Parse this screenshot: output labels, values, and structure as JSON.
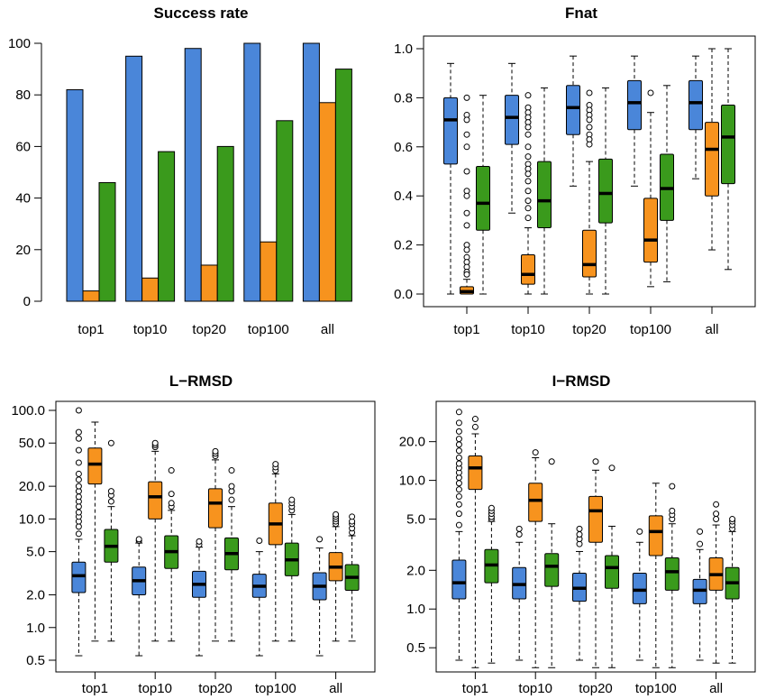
{
  "colors": {
    "blue": "#4A86D9",
    "orange": "#F7931E",
    "green": "#3A9A1C"
  },
  "chart_data": [
    {
      "type": "bar",
      "title": "Success rate",
      "categories": [
        "top1",
        "top10",
        "top20",
        "top100",
        "all"
      ],
      "ylim": [
        0,
        100
      ],
      "yticks": [
        0,
        20,
        40,
        60,
        80,
        100
      ],
      "ytick_labels": [
        "0",
        "20",
        "40",
        "60",
        "80",
        "100"
      ],
      "series": [
        {
          "color": "blue",
          "values": [
            82,
            95,
            98,
            100,
            100
          ]
        },
        {
          "color": "orange",
          "values": [
            4,
            9,
            14,
            23,
            77
          ]
        },
        {
          "color": "green",
          "values": [
            46,
            58,
            60,
            70,
            90
          ]
        }
      ]
    },
    {
      "type": "box",
      "title": "Fnat",
      "scale": "linear",
      "categories": [
        "top1",
        "top10",
        "top20",
        "top100",
        "all"
      ],
      "ylim": [
        0,
        1
      ],
      "yticks": [
        0,
        0.2,
        0.4,
        0.6,
        0.8,
        1.0
      ],
      "ytick_labels": [
        "0.0",
        "0.2",
        "0.4",
        "0.6",
        "0.8",
        "1.0"
      ],
      "groups": [
        [
          {
            "color": "blue",
            "min": 0.0,
            "q1": 0.53,
            "median": 0.71,
            "q3": 0.8,
            "max": 0.94,
            "outliers": []
          },
          {
            "color": "orange",
            "min": 0.0,
            "q1": 0.0,
            "median": 0.01,
            "q3": 0.03,
            "max": 0.06,
            "outliers": [
              0.8,
              0.73,
              0.71,
              0.65,
              0.6,
              0.5,
              0.42,
              0.4,
              0.33,
              0.28,
              0.2,
              0.18,
              0.15,
              0.13,
              0.11,
              0.09,
              0.08
            ]
          },
          {
            "color": "green",
            "min": 0.0,
            "q1": 0.26,
            "median": 0.37,
            "q3": 0.52,
            "max": 0.81,
            "outliers": []
          }
        ],
        [
          {
            "color": "blue",
            "min": 0.33,
            "q1": 0.61,
            "median": 0.72,
            "q3": 0.81,
            "max": 0.94,
            "outliers": []
          },
          {
            "color": "orange",
            "min": 0.0,
            "q1": 0.04,
            "median": 0.08,
            "q3": 0.16,
            "max": 0.27,
            "outliers": [
              0.81,
              0.76,
              0.74,
              0.72,
              0.7,
              0.68,
              0.65,
              0.6,
              0.56,
              0.53,
              0.51,
              0.49,
              0.46,
              0.42,
              0.38,
              0.35,
              0.31
            ]
          },
          {
            "color": "green",
            "min": 0.0,
            "q1": 0.27,
            "median": 0.38,
            "q3": 0.54,
            "max": 0.84,
            "outliers": []
          }
        ],
        [
          {
            "color": "blue",
            "min": 0.44,
            "q1": 0.65,
            "median": 0.76,
            "q3": 0.85,
            "max": 0.97,
            "outliers": []
          },
          {
            "color": "orange",
            "min": 0.0,
            "q1": 0.07,
            "median": 0.12,
            "q3": 0.26,
            "max": 0.54,
            "outliers": [
              0.82,
              0.77,
              0.75,
              0.73,
              0.71,
              0.68,
              0.65,
              0.63,
              0.61
            ]
          },
          {
            "color": "green",
            "min": 0.0,
            "q1": 0.29,
            "median": 0.41,
            "q3": 0.55,
            "max": 0.84,
            "outliers": []
          }
        ],
        [
          {
            "color": "blue",
            "min": 0.44,
            "q1": 0.67,
            "median": 0.78,
            "q3": 0.87,
            "max": 0.97,
            "outliers": []
          },
          {
            "color": "orange",
            "min": 0.03,
            "q1": 0.13,
            "median": 0.22,
            "q3": 0.39,
            "max": 0.74,
            "outliers": [
              0.82
            ]
          },
          {
            "color": "green",
            "min": 0.05,
            "q1": 0.3,
            "median": 0.43,
            "q3": 0.57,
            "max": 0.85,
            "outliers": []
          }
        ],
        [
          {
            "color": "blue",
            "min": 0.47,
            "q1": 0.67,
            "median": 0.78,
            "q3": 0.87,
            "max": 0.97,
            "outliers": []
          },
          {
            "color": "orange",
            "min": 0.18,
            "q1": 0.4,
            "median": 0.59,
            "q3": 0.7,
            "max": 1.0,
            "outliers": []
          },
          {
            "color": "green",
            "min": 0.1,
            "q1": 0.45,
            "median": 0.64,
            "q3": 0.77,
            "max": 1.0,
            "outliers": []
          }
        ]
      ]
    },
    {
      "type": "box",
      "title": "L−RMSD",
      "scale": "log",
      "categories": [
        "top1",
        "top10",
        "top20",
        "top100",
        "all"
      ],
      "ylim": [
        0.5,
        100
      ],
      "yticks": [
        0.5,
        1,
        2,
        5,
        10,
        20,
        50,
        100
      ],
      "ytick_labels": [
        "0.5",
        "1.0",
        "2.0",
        "5.0",
        "10.0",
        "20.0",
        "50.0",
        "100.0"
      ],
      "groups": [
        [
          {
            "color": "blue",
            "min": 0.55,
            "q1": 2.1,
            "median": 3.0,
            "q3": 4.0,
            "max": 6.5,
            "outliers": [
              7.3,
              8.5,
              9.5,
              10.5,
              11.5,
              13,
              14.5,
              16,
              18,
              20,
              23,
              26,
              33,
              43,
              55,
              63,
              100
            ]
          },
          {
            "color": "orange",
            "min": 0.75,
            "q1": 21,
            "median": 32,
            "q3": 45,
            "max": 78,
            "outliers": []
          },
          {
            "color": "green",
            "min": 0.75,
            "q1": 4.0,
            "median": 5.6,
            "q3": 8.0,
            "max": 13,
            "outliers": [
              14.5,
              16.5,
              18,
              50
            ]
          }
        ],
        [
          {
            "color": "blue",
            "min": 0.55,
            "q1": 2.0,
            "median": 2.7,
            "q3": 3.6,
            "max": 6.0,
            "outliers": [
              6.3,
              6.5
            ]
          },
          {
            "color": "orange",
            "min": 0.75,
            "q1": 10,
            "median": 16,
            "q3": 22,
            "max": 42,
            "outliers": [
              46,
              48,
              50
            ]
          },
          {
            "color": "green",
            "min": 0.75,
            "q1": 3.5,
            "median": 5.0,
            "q3": 7.0,
            "max": 12,
            "outliers": [
              13,
              14,
              17,
              28
            ]
          }
        ],
        [
          {
            "color": "blue",
            "min": 0.55,
            "q1": 1.9,
            "median": 2.5,
            "q3": 3.3,
            "max": 5.5,
            "outliers": [
              5.8,
              6.2
            ]
          },
          {
            "color": "orange",
            "min": 0.75,
            "q1": 8.3,
            "median": 14,
            "q3": 19,
            "max": 35,
            "outliers": [
              38,
              40,
              42
            ]
          },
          {
            "color": "green",
            "min": 0.75,
            "q1": 3.4,
            "median": 4.8,
            "q3": 6.7,
            "max": 13,
            "outliers": [
              15,
              18,
              20,
              28
            ]
          }
        ],
        [
          {
            "color": "blue",
            "min": 0.55,
            "q1": 1.9,
            "median": 2.4,
            "q3": 3.1,
            "max": 5.0,
            "outliers": [
              6.3
            ]
          },
          {
            "color": "orange",
            "min": 0.75,
            "q1": 5.8,
            "median": 9.0,
            "q3": 14,
            "max": 26,
            "outliers": [
              28,
              30,
              32
            ]
          },
          {
            "color": "green",
            "min": 0.75,
            "q1": 3.0,
            "median": 4.2,
            "q3": 6.0,
            "max": 11,
            "outliers": [
              12,
              13,
              14,
              15
            ]
          }
        ],
        [
          {
            "color": "blue",
            "min": 0.55,
            "q1": 1.8,
            "median": 2.4,
            "q3": 3.2,
            "max": 5.4,
            "outliers": [
              6.5
            ]
          },
          {
            "color": "orange",
            "min": 0.75,
            "q1": 2.7,
            "median": 3.6,
            "q3": 4.9,
            "max": 8.5,
            "outliers": [
              9,
              9.5,
              10,
              10.5,
              11
            ]
          },
          {
            "color": "green",
            "min": 0.75,
            "q1": 2.2,
            "median": 2.9,
            "q3": 3.8,
            "max": 7.0,
            "outliers": [
              7.5,
              8.2,
              9,
              9.5,
              10.5
            ]
          }
        ]
      ]
    },
    {
      "type": "box",
      "title": "I−RMSD",
      "scale": "log",
      "categories": [
        "top1",
        "top10",
        "top20",
        "top100",
        "all"
      ],
      "ylim": [
        0.4,
        35
      ],
      "yticks": [
        0.5,
        1,
        2,
        5,
        10,
        20
      ],
      "ytick_labels": [
        "0.5",
        "1.0",
        "2.0",
        "5.0",
        "10.0",
        "20.0"
      ],
      "groups": [
        [
          {
            "color": "blue",
            "min": 0.4,
            "q1": 1.2,
            "median": 1.6,
            "q3": 2.4,
            "max": 4.0,
            "outliers": [
              4.5,
              5.5,
              6.5,
              7.5,
              8.5,
              9.5,
              10.5,
              11.5,
              12.5,
              13.5,
              15,
              17,
              19,
              21,
              24,
              28,
              34
            ]
          },
          {
            "color": "orange",
            "min": 0.35,
            "q1": 8.5,
            "median": 12.5,
            "q3": 15.5,
            "max": 23,
            "outliers": [
              26,
              30
            ]
          },
          {
            "color": "green",
            "min": 0.38,
            "q1": 1.6,
            "median": 2.2,
            "q3": 2.9,
            "max": 4.8,
            "outliers": [
              5.0,
              5.2,
              5.5,
              5.8,
              6.1
            ]
          }
        ],
        [
          {
            "color": "blue",
            "min": 0.4,
            "q1": 1.2,
            "median": 1.55,
            "q3": 2.1,
            "max": 3.3,
            "outliers": [
              3.8,
              4.2
            ]
          },
          {
            "color": "orange",
            "min": 0.35,
            "q1": 4.8,
            "median": 7.0,
            "q3": 9.5,
            "max": 15,
            "outliers": [
              16.5
            ]
          },
          {
            "color": "green",
            "min": 0.35,
            "q1": 1.5,
            "median": 2.15,
            "q3": 2.7,
            "max": 4.6,
            "outliers": [
              14
            ]
          }
        ],
        [
          {
            "color": "blue",
            "min": 0.4,
            "q1": 1.15,
            "median": 1.45,
            "q3": 1.9,
            "max": 2.8,
            "outliers": [
              3.2,
              3.5,
              3.8,
              4.2
            ]
          },
          {
            "color": "orange",
            "min": 0.35,
            "q1": 3.3,
            "median": 5.8,
            "q3": 7.5,
            "max": 12,
            "outliers": [
              14
            ]
          },
          {
            "color": "green",
            "min": 0.35,
            "q1": 1.45,
            "median": 2.1,
            "q3": 2.6,
            "max": 4.4,
            "outliers": [
              12.5
            ]
          }
        ],
        [
          {
            "color": "blue",
            "min": 0.4,
            "q1": 1.1,
            "median": 1.4,
            "q3": 1.9,
            "max": 3.3,
            "outliers": [
              4.0
            ]
          },
          {
            "color": "orange",
            "min": 0.35,
            "q1": 2.6,
            "median": 4.0,
            "q3": 5.3,
            "max": 9.5,
            "outliers": []
          },
          {
            "color": "green",
            "min": 0.35,
            "q1": 1.4,
            "median": 1.95,
            "q3": 2.5,
            "max": 4.6,
            "outliers": [
              5.0,
              5.4,
              5.8,
              9.0
            ]
          }
        ],
        [
          {
            "color": "blue",
            "min": 0.4,
            "q1": 1.1,
            "median": 1.4,
            "q3": 1.7,
            "max": 2.9,
            "outliers": [
              3.2,
              4.0
            ]
          },
          {
            "color": "orange",
            "min": 0.38,
            "q1": 1.4,
            "median": 1.85,
            "q3": 2.5,
            "max": 4.5,
            "outliers": [
              5.0,
              5.5,
              6.5
            ]
          },
          {
            "color": "green",
            "min": 0.38,
            "q1": 1.2,
            "median": 1.6,
            "q3": 2.1,
            "max": 4.0,
            "outliers": [
              4.2,
              4.5,
              4.8,
              5.0
            ]
          }
        ]
      ]
    }
  ]
}
